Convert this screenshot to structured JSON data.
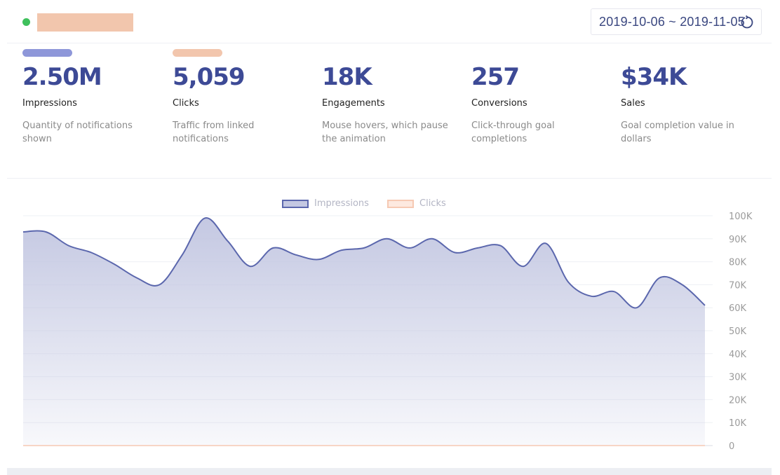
{
  "header": {
    "status_color": "#3fc05c",
    "title_redaction_color": "#f2c6ad",
    "date_range": "2019-10-06 ~ 2019-11-05",
    "refresh_icon": "refresh-icon"
  },
  "metrics": [
    {
      "value": "2.50M",
      "label": "Impressions",
      "desc": "Quantity of notifications shown",
      "color": "#8e97d9"
    },
    {
      "value": "5,059",
      "label": "Clicks",
      "desc": "Traffic from linked notifications",
      "color": "#f2c6ad"
    },
    {
      "value": "18K",
      "label": "Engagements",
      "desc": "Mouse hovers, which pause the animation",
      "color": ""
    },
    {
      "value": "257",
      "label": "Conversions",
      "desc": "Click-through goal completions",
      "color": ""
    },
    {
      "value": "$34K",
      "label": "Sales",
      "desc": "Goal completion value in dollars",
      "color": ""
    }
  ],
  "colors": {
    "accent": "#3d4a96",
    "impressions_line": "#5b67ad",
    "impressions_fill": "#c4c8e2",
    "clicks_line": "#f6c9b3",
    "clicks_fill": "#fde9df"
  },
  "chart_data": {
    "type": "area",
    "legend": [
      "Impressions",
      "Clicks"
    ],
    "ylim": [
      0,
      100000
    ],
    "y_ticks": [
      "0",
      "10K",
      "20K",
      "30K",
      "40K",
      "50K",
      "60K",
      "70K",
      "80K",
      "90K",
      "100K"
    ],
    "series": [
      {
        "name": "Impressions",
        "values": [
          93000,
          93000,
          87000,
          84000,
          79000,
          73000,
          70000,
          83000,
          99000,
          89000,
          78000,
          86000,
          83000,
          81000,
          85000,
          86000,
          90000,
          86000,
          90000,
          84000,
          86000,
          87000,
          78000,
          88000,
          71000,
          65000,
          67000,
          60000,
          73000,
          70000,
          61000
        ]
      },
      {
        "name": "Clicks",
        "values": [
          0,
          0,
          0,
          0,
          0,
          0,
          0,
          0,
          0,
          0,
          0,
          0,
          0,
          0,
          0,
          0,
          0,
          0,
          0,
          0,
          0,
          0,
          0,
          0,
          0,
          0,
          0,
          0,
          0,
          0,
          0
        ]
      }
    ]
  }
}
